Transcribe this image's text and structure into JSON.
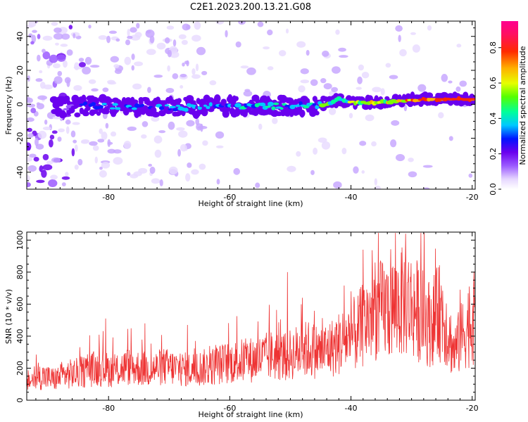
{
  "figure": {
    "title": "C2E1.2023.200.13.21.G08"
  },
  "colors": {
    "snr_line": "#ee3333",
    "axis": "#000000",
    "ridge_low": "#6a00ee",
    "ridge_mid": "#00c8ff",
    "ridge_high": "#ff2020"
  },
  "chart_data": [
    {
      "type": "heatmap",
      "title": "",
      "xlabel": "Height of straight line (km)",
      "ylabel": "Frequency (Hz)",
      "xlim": [
        -93.5,
        -19.5
      ],
      "ylim": [
        -50,
        49
      ],
      "xticks": [
        -80,
        -60,
        -40,
        -20
      ],
      "yticks": [
        -40,
        -20,
        0,
        20,
        40
      ],
      "colorbar": {
        "label": "Normalized spectral amplitude",
        "range": [
          0,
          0.95
        ],
        "ticks": [
          0.0,
          0.2,
          0.4,
          0.6,
          0.8
        ],
        "colormap": "rainbow (violet to red to magenta)"
      },
      "ridge": {
        "description": "dominant frequency track vs height",
        "x": [
          -88,
          -84,
          -80,
          -76,
          -72,
          -68,
          -64,
          -60,
          -56,
          -52,
          -48,
          -44,
          -42,
          -40,
          -36,
          -32,
          -28,
          -24,
          -20
        ],
        "frequency": [
          -2,
          -1,
          -1,
          -2,
          -1,
          -2,
          -1,
          -1,
          -1,
          -1,
          -1,
          0,
          3,
          1,
          1,
          2,
          3,
          3,
          3
        ],
        "amplitude": [
          0.15,
          0.3,
          0.3,
          0.35,
          0.3,
          0.35,
          0.35,
          0.35,
          0.4,
          0.4,
          0.4,
          0.45,
          0.5,
          0.55,
          0.6,
          0.65,
          0.75,
          0.9,
          0.95
        ]
      },
      "grid": false
    },
    {
      "type": "line",
      "title": "",
      "xlabel": "Height of straight line (km)",
      "ylabel": "SNR (10 * v/v)",
      "xlim": [
        -93.5,
        -19.5
      ],
      "ylim": [
        0,
        1050
      ],
      "xticks": [
        -80,
        -60,
        -40,
        -20
      ],
      "yticks": [
        0,
        200,
        400,
        600,
        800,
        1000
      ],
      "series": [
        {
          "x": [
            -93,
            -91,
            -89,
            -87,
            -85,
            -83,
            -81,
            -79,
            -77,
            -75,
            -73,
            -71,
            -69,
            -67,
            -65,
            -63,
            -61,
            -59,
            -57,
            -55,
            -53,
            -51,
            -49,
            -47,
            -45,
            -43,
            -41,
            -39,
            -37,
            -35,
            -33,
            -31,
            -29,
            -27,
            -25,
            -23,
            -21,
            -19.5
          ],
          "y": [
            120,
            150,
            130,
            160,
            170,
            190,
            200,
            180,
            210,
            200,
            190,
            210,
            200,
            190,
            200,
            210,
            230,
            240,
            250,
            260,
            280,
            270,
            300,
            320,
            300,
            330,
            380,
            420,
            520,
            560,
            580,
            620,
            560,
            480,
            560,
            300,
            450,
            520
          ],
          "peaks": [
            [
              -80.5,
              510
            ],
            [
              -74,
              480
            ],
            [
              -67,
              470
            ],
            [
              -50.5,
              800
            ],
            [
              -48,
              640
            ],
            [
              -40,
              680
            ],
            [
              -38,
              940
            ],
            [
              -36,
              860
            ],
            [
              -34,
              710
            ],
            [
              -31,
              1040
            ],
            [
              -28,
              720
            ],
            [
              -25.5,
              830
            ],
            [
              -22,
              690
            ],
            [
              -20.5,
              710
            ]
          ]
        }
      ],
      "grid": false
    }
  ]
}
